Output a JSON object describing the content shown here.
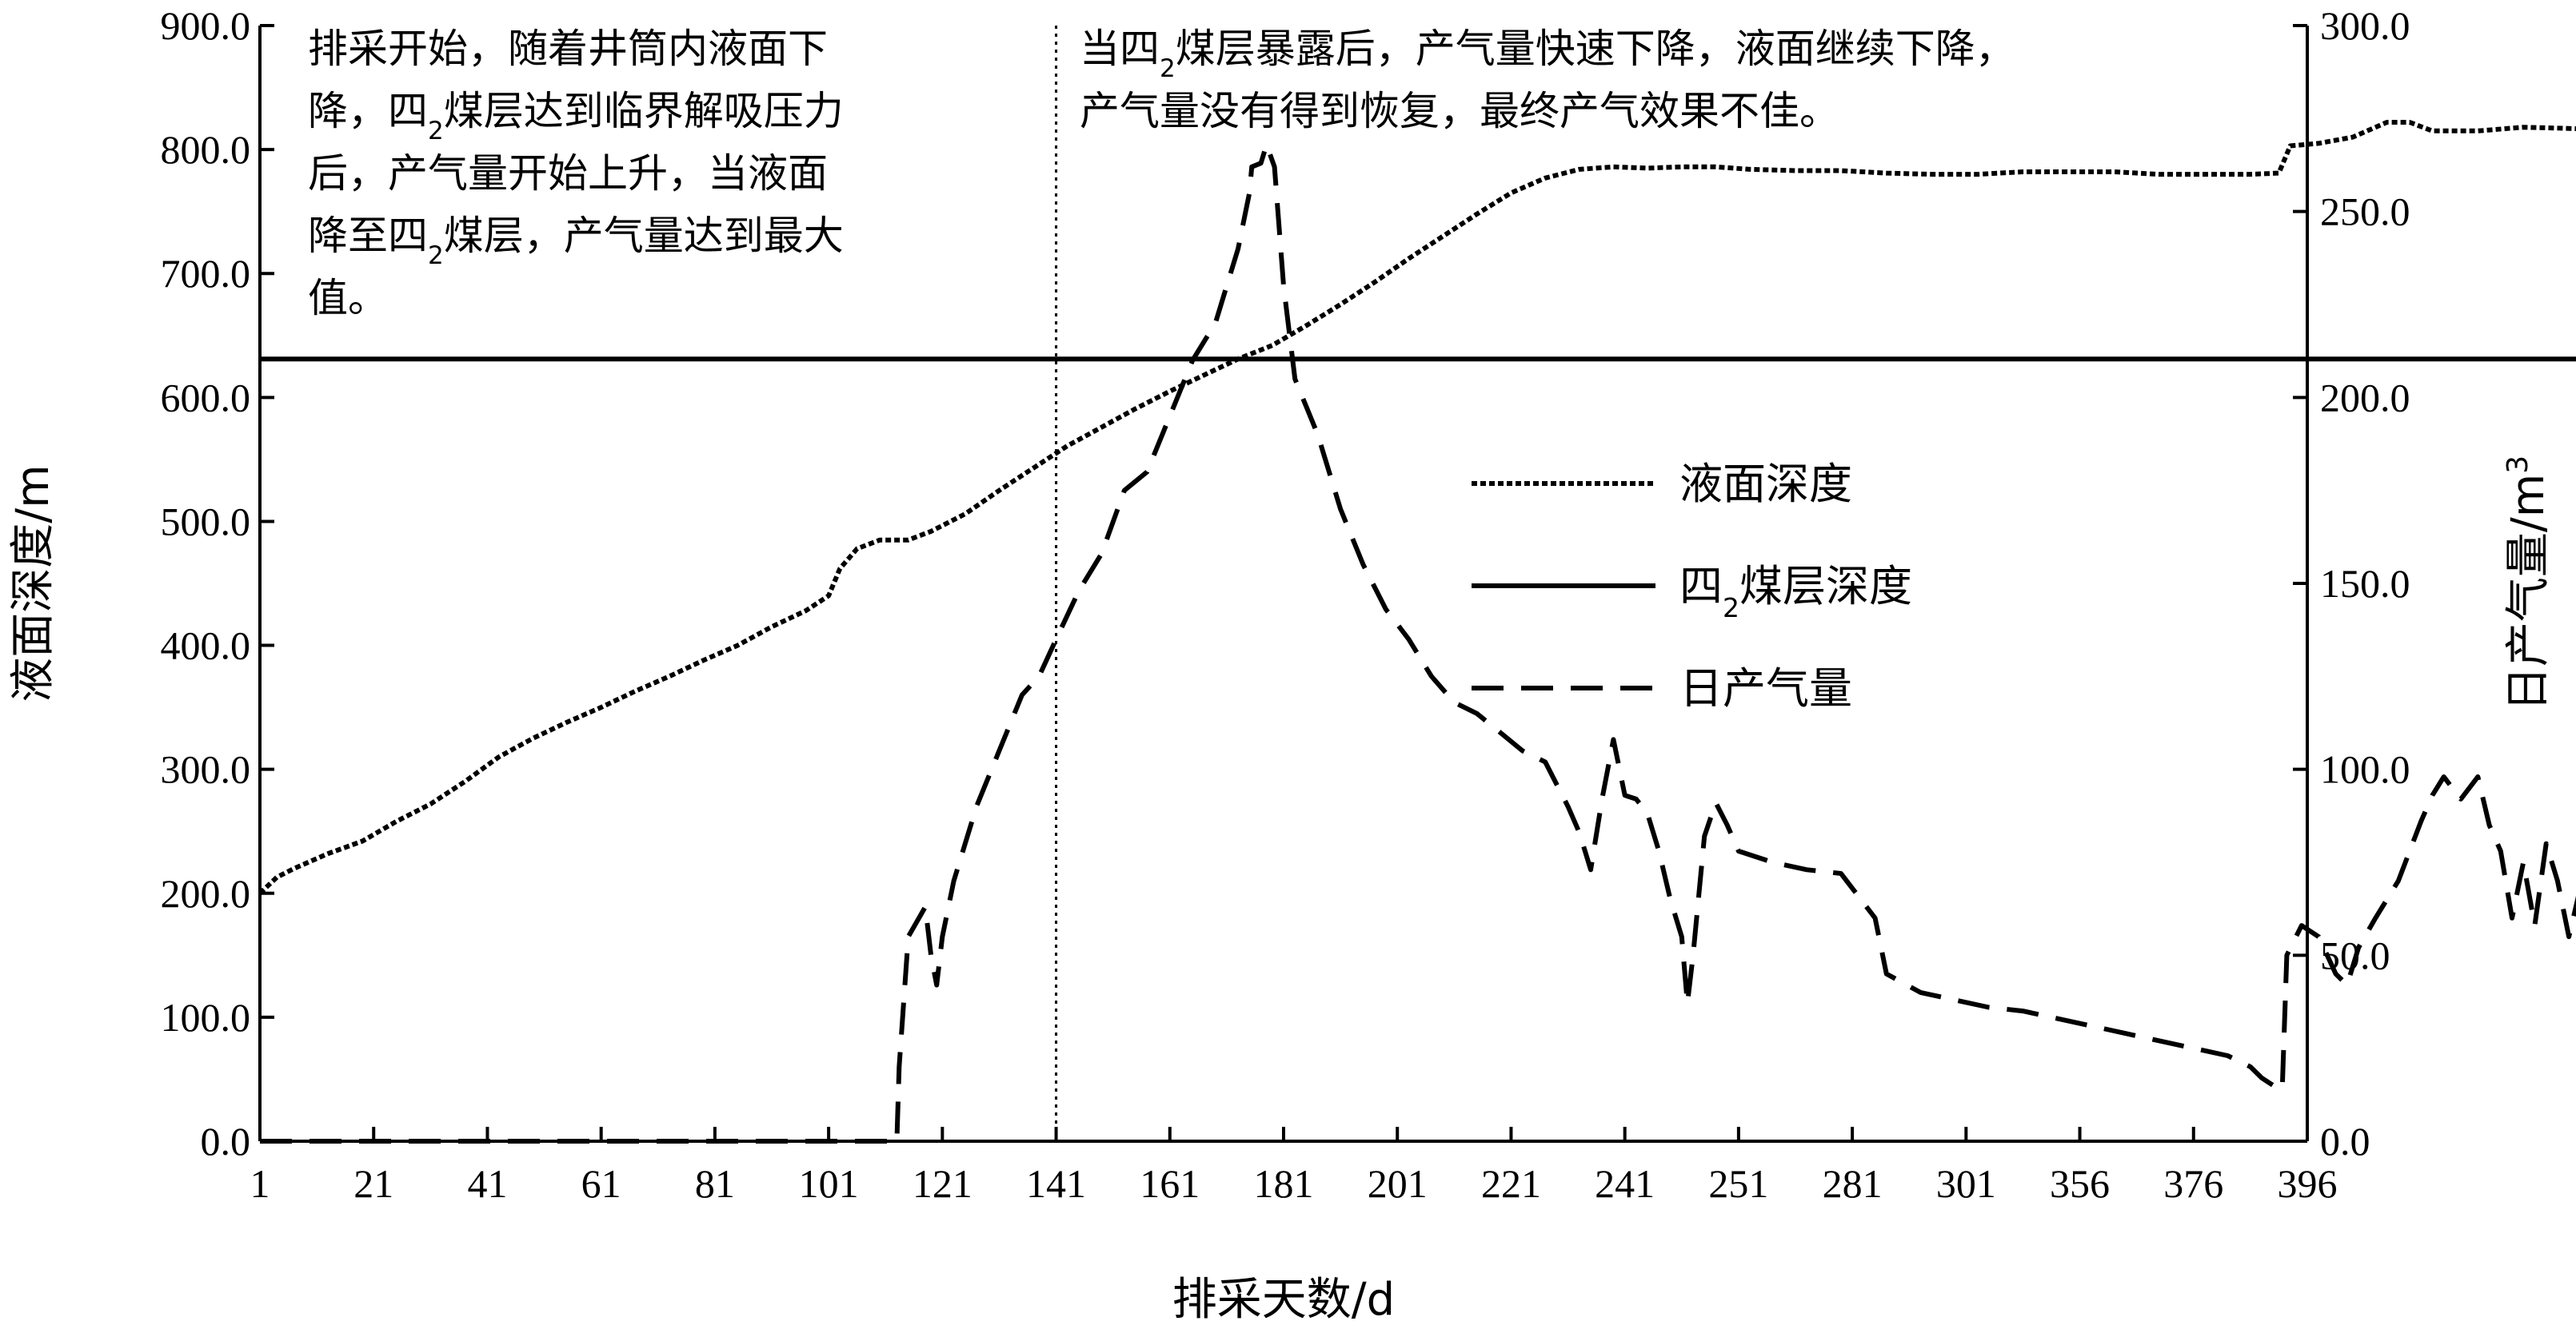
{
  "chart_data": {
    "type": "line",
    "xlabel": "排采天数/d",
    "ylabel_left": "液面深度/m",
    "ylabel_right_prefix": "日产气量/m",
    "ylabel_right_sup": "3",
    "x_tick_labels": [
      "1",
      "21",
      "41",
      "61",
      "81",
      "101",
      "121",
      "141",
      "161",
      "181",
      "201",
      "221",
      "241",
      "251",
      "281",
      "301",
      "356",
      "376",
      "396"
    ],
    "y_left_ticks": [
      "0.0",
      "100.0",
      "200.0",
      "300.0",
      "400.0",
      "500.0",
      "600.0",
      "700.0",
      "800.0",
      "900.0"
    ],
    "y_right_ticks": [
      "0.0",
      "50.0",
      "100.0",
      "150.0",
      "200.0",
      "250.0",
      "300.0"
    ],
    "ylim_left": [
      0,
      900
    ],
    "ylim_right": [
      0,
      300
    ],
    "xlim_index": [
      0,
      18
    ],
    "grid": false,
    "legend_position": "center-right",
    "annotations": {
      "left": [
        {
          "segments": [
            {
              "t": "排采开始，随着井筒内液面下"
            }
          ]
        },
        {
          "segments": [
            {
              "t": "降，四"
            },
            {
              "t": "2",
              "sub": true
            },
            {
              "t": "煤层达到临界解吸压力"
            }
          ]
        },
        {
          "segments": [
            {
              "t": "后，产气量开始上升，当液面"
            }
          ]
        },
        {
          "segments": [
            {
              "t": "降至四"
            },
            {
              "t": "2",
              "sub": true
            },
            {
              "t": "煤层，产气量达到最大"
            }
          ]
        },
        {
          "segments": [
            {
              "t": "值。"
            }
          ]
        }
      ],
      "right": [
        {
          "segments": [
            {
              "t": "当四"
            },
            {
              "t": "2",
              "sub": true
            },
            {
              "t": "煤层暴露后，产气量快速下降，液面继续下降，"
            }
          ]
        },
        {
          "segments": [
            {
              "t": "产气量没有得到恢复，最终产气效果不佳。"
            }
          ]
        }
      ]
    },
    "series": [
      {
        "name_segments": [
          {
            "t": "液面深度"
          }
        ],
        "axis": "left",
        "style": "dotted",
        "points": [
          [
            0,
            200
          ],
          [
            0.15,
            213
          ],
          [
            0.3,
            220
          ],
          [
            0.6,
            232
          ],
          [
            0.9,
            242
          ],
          [
            1.2,
            258
          ],
          [
            1.5,
            272
          ],
          [
            1.8,
            290
          ],
          [
            2.1,
            310
          ],
          [
            2.4,
            325
          ],
          [
            2.7,
            338
          ],
          [
            3.0,
            350
          ],
          [
            3.3,
            363
          ],
          [
            3.6,
            375
          ],
          [
            3.9,
            388
          ],
          [
            4.2,
            400
          ],
          [
            4.5,
            415
          ],
          [
            4.8,
            428
          ],
          [
            5.0,
            440
          ],
          [
            5.1,
            462
          ],
          [
            5.25,
            478
          ],
          [
            5.45,
            485
          ],
          [
            5.7,
            485
          ],
          [
            5.9,
            492
          ],
          [
            6.2,
            506
          ],
          [
            6.5,
            525
          ],
          [
            6.8,
            543
          ],
          [
            7.1,
            561
          ],
          [
            7.4,
            576
          ],
          [
            7.7,
            591
          ],
          [
            8.0,
            605
          ],
          [
            8.3,
            618
          ],
          [
            8.6,
            631
          ],
          [
            8.9,
            642
          ],
          [
            9.2,
            658
          ],
          [
            9.5,
            675
          ],
          [
            9.8,
            693
          ],
          [
            10.1,
            712
          ],
          [
            10.4,
            730
          ],
          [
            10.7,
            748
          ],
          [
            11.0,
            765
          ],
          [
            11.3,
            777
          ],
          [
            11.6,
            784
          ],
          [
            11.9,
            786
          ],
          [
            12.2,
            785
          ],
          [
            12.5,
            786
          ],
          [
            12.8,
            786
          ],
          [
            13.1,
            784
          ],
          [
            13.5,
            783
          ],
          [
            13.9,
            783
          ],
          [
            14.3,
            781
          ],
          [
            14.7,
            780
          ],
          [
            15.1,
            780
          ],
          [
            15.5,
            782
          ],
          [
            15.9,
            782
          ],
          [
            16.3,
            782
          ],
          [
            16.7,
            780
          ],
          [
            17.1,
            780
          ],
          [
            17.5,
            780
          ],
          [
            17.75,
            781
          ],
          [
            17.85,
            803
          ],
          [
            18.1,
            805
          ],
          [
            18.4,
            810
          ],
          [
            18.7,
            822
          ],
          [
            18.9,
            822
          ],
          [
            19.1,
            815
          ],
          [
            19.5,
            815
          ],
          [
            19.9,
            818
          ],
          [
            20.3,
            817
          ],
          [
            20.6,
            816
          ],
          [
            21.0,
            818
          ],
          [
            21.4,
            817
          ],
          [
            21.8,
            815
          ],
          [
            22.2,
            815
          ],
          [
            22.6,
            818
          ],
          [
            22.99,
            815
          ]
        ]
      },
      {
        "name_segments": [
          {
            "t": "四"
          },
          {
            "t": "2",
            "sub": true
          },
          {
            "t": "煤层深度"
          }
        ],
        "axis": "left",
        "style": "solid",
        "points": [
          [
            0,
            631
          ],
          [
            22.99,
            631
          ]
        ]
      },
      {
        "name_segments": [
          {
            "t": "日产气量"
          }
        ],
        "axis": "right",
        "style": "dashed",
        "points": [
          [
            0,
            0
          ],
          [
            1.0,
            0
          ],
          [
            2.0,
            0
          ],
          [
            3.0,
            0
          ],
          [
            4.0,
            0
          ],
          [
            5.0,
            0
          ],
          [
            5.6,
            0
          ],
          [
            5.62,
            20
          ],
          [
            5.7,
            55
          ],
          [
            5.85,
            63
          ],
          [
            5.9,
            50
          ],
          [
            5.95,
            42
          ],
          [
            6.0,
            55
          ],
          [
            6.1,
            70
          ],
          [
            6.3,
            90
          ],
          [
            6.5,
            105
          ],
          [
            6.7,
            120
          ],
          [
            6.85,
            125
          ],
          [
            7.0,
            135
          ],
          [
            7.2,
            148
          ],
          [
            7.4,
            158
          ],
          [
            7.6,
            175
          ],
          [
            7.8,
            180
          ],
          [
            8.0,
            195
          ],
          [
            8.2,
            210
          ],
          [
            8.4,
            220
          ],
          [
            8.6,
            240
          ],
          [
            8.7,
            255
          ],
          [
            8.72,
            262
          ],
          [
            8.8,
            263
          ],
          [
            8.85,
            268
          ],
          [
            8.92,
            262
          ],
          [
            9.0,
            230
          ],
          [
            9.1,
            205
          ],
          [
            9.3,
            190
          ],
          [
            9.5,
            170
          ],
          [
            9.7,
            155
          ],
          [
            9.9,
            143
          ],
          [
            10.1,
            135
          ],
          [
            10.3,
            125
          ],
          [
            10.5,
            118
          ],
          [
            10.7,
            115
          ],
          [
            10.9,
            110
          ],
          [
            11.1,
            105
          ],
          [
            11.3,
            102
          ],
          [
            11.5,
            90
          ],
          [
            11.6,
            83
          ],
          [
            11.7,
            73
          ],
          [
            11.8,
            92
          ],
          [
            11.9,
            108
          ],
          [
            12.0,
            93
          ],
          [
            12.1,
            92
          ],
          [
            12.2,
            88
          ],
          [
            12.3,
            78
          ],
          [
            12.4,
            65
          ],
          [
            12.5,
            55
          ],
          [
            12.55,
            37
          ],
          [
            12.6,
            50
          ],
          [
            12.7,
            82
          ],
          [
            12.8,
            91
          ],
          [
            12.9,
            85
          ],
          [
            13.0,
            78
          ],
          [
            13.3,
            75
          ],
          [
            13.6,
            73
          ],
          [
            13.9,
            72
          ],
          [
            14.2,
            60
          ],
          [
            14.3,
            45
          ],
          [
            14.6,
            40
          ],
          [
            14.9,
            38
          ],
          [
            15.2,
            36
          ],
          [
            15.5,
            35
          ],
          [
            15.8,
            33
          ],
          [
            16.1,
            31
          ],
          [
            16.4,
            29
          ],
          [
            16.7,
            27
          ],
          [
            17.0,
            25
          ],
          [
            17.3,
            23
          ],
          [
            17.5,
            20
          ],
          [
            17.6,
            17
          ],
          [
            17.7,
            15
          ],
          [
            17.78,
            14
          ],
          [
            17.82,
            50
          ],
          [
            17.95,
            58
          ],
          [
            18.1,
            55
          ],
          [
            18.25,
            45
          ],
          [
            18.35,
            42
          ],
          [
            18.45,
            52
          ],
          [
            18.6,
            60
          ],
          [
            18.8,
            70
          ],
          [
            19.0,
            86
          ],
          [
            19.1,
            93
          ],
          [
            19.2,
            98
          ],
          [
            19.35,
            92
          ],
          [
            19.5,
            98
          ],
          [
            19.6,
            85
          ],
          [
            19.7,
            78
          ],
          [
            19.8,
            60
          ],
          [
            19.9,
            75
          ],
          [
            20.0,
            58
          ],
          [
            20.1,
            80
          ],
          [
            20.2,
            70
          ],
          [
            20.3,
            55
          ],
          [
            20.4,
            68
          ],
          [
            20.5,
            60
          ],
          [
            20.6,
            75
          ],
          [
            20.7,
            58
          ],
          [
            20.8,
            65
          ],
          [
            20.9,
            70
          ],
          [
            21.0,
            55
          ],
          [
            21.1,
            60
          ],
          [
            21.2,
            78
          ],
          [
            21.3,
            65
          ],
          [
            21.4,
            55
          ],
          [
            21.5,
            60
          ],
          [
            21.6,
            68
          ],
          [
            21.7,
            52
          ],
          [
            21.8,
            62
          ],
          [
            21.9,
            58
          ],
          [
            22.0,
            48
          ],
          [
            22.1,
            55
          ],
          [
            22.2,
            50
          ],
          [
            22.3,
            62
          ],
          [
            22.4,
            48
          ],
          [
            22.5,
            55
          ],
          [
            22.6,
            45
          ],
          [
            22.7,
            52
          ],
          [
            22.8,
            44
          ],
          [
            22.9,
            50
          ],
          [
            22.99,
            43
          ]
        ]
      }
    ]
  }
}
